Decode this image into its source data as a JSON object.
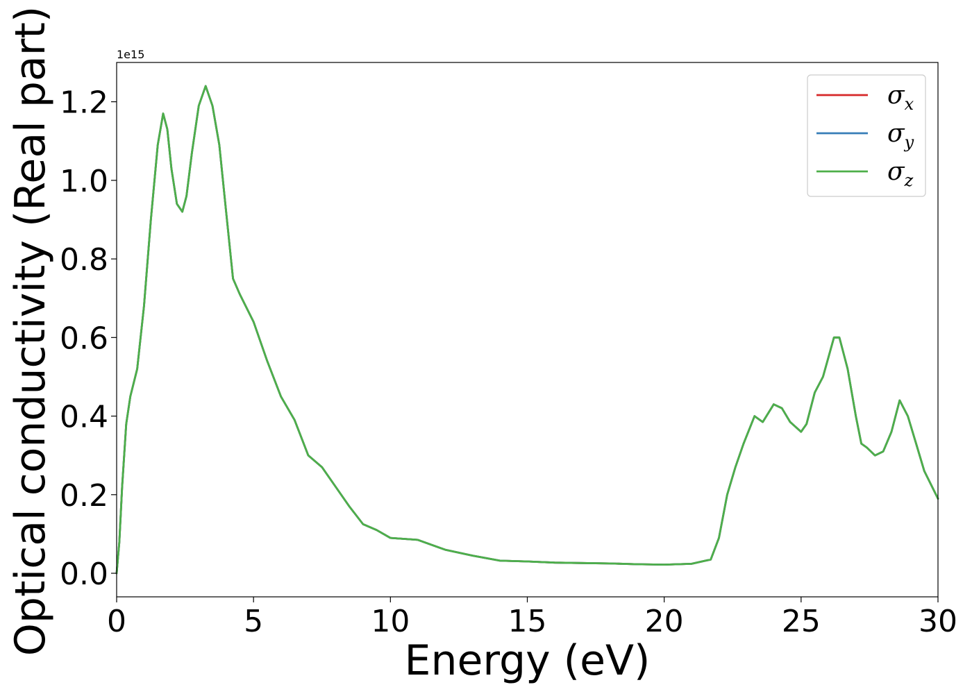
{
  "chart_data": {
    "type": "line",
    "xlabel": "Energy (eV)",
    "ylabel": "Optical conductivity (Real part)",
    "y_offset_text": "1e15",
    "xlim": [
      0,
      30
    ],
    "ylim": [
      -0.06,
      1.3
    ],
    "x_ticks": [
      0,
      5,
      10,
      15,
      20,
      25,
      30
    ],
    "x_tick_labels": [
      "0",
      "5",
      "10",
      "15",
      "20",
      "25",
      "30"
    ],
    "y_ticks": [
      0.0,
      0.2,
      0.4,
      0.6,
      0.8,
      1.0,
      1.2
    ],
    "y_tick_labels": [
      "0.0",
      "0.2",
      "0.4",
      "0.6",
      "0.8",
      "1.0",
      "1.2"
    ],
    "grid": false,
    "legend_position": "top-right",
    "x": [
      0,
      0.1,
      0.2,
      0.35,
      0.5,
      0.75,
      1.0,
      1.25,
      1.5,
      1.7,
      1.85,
      2.0,
      2.2,
      2.4,
      2.55,
      2.75,
      3.0,
      3.25,
      3.5,
      3.75,
      4.0,
      4.25,
      4.5,
      5.0,
      5.5,
      6.0,
      6.5,
      7.0,
      7.5,
      8.0,
      8.5,
      9.0,
      9.5,
      10.0,
      11.0,
      12.0,
      13.0,
      14.0,
      15.0,
      16.0,
      17.0,
      18.0,
      19.0,
      20.0,
      21.0,
      21.7,
      22.0,
      22.3,
      22.6,
      22.9,
      23.3,
      23.6,
      24.0,
      24.3,
      24.6,
      25.0,
      25.2,
      25.5,
      25.8,
      26.0,
      26.2,
      26.4,
      26.7,
      27.0,
      27.2,
      27.4,
      27.7,
      28.0,
      28.3,
      28.6,
      28.9,
      29.2,
      29.5,
      30.0
    ],
    "series": [
      {
        "name": "σx",
        "color": "#d62728",
        "values": [
          0.0,
          0.08,
          0.22,
          0.38,
          0.45,
          0.52,
          0.68,
          0.9,
          1.09,
          1.17,
          1.13,
          1.03,
          0.94,
          0.92,
          0.96,
          1.07,
          1.19,
          1.24,
          1.19,
          1.09,
          0.92,
          0.75,
          0.71,
          0.64,
          0.54,
          0.45,
          0.39,
          0.3,
          0.27,
          0.22,
          0.17,
          0.125,
          0.11,
          0.09,
          0.085,
          0.06,
          0.045,
          0.032,
          0.03,
          0.027,
          0.026,
          0.025,
          0.023,
          0.022,
          0.024,
          0.035,
          0.09,
          0.2,
          0.27,
          0.33,
          0.4,
          0.385,
          0.43,
          0.42,
          0.385,
          0.36,
          0.38,
          0.46,
          0.5,
          0.55,
          0.6,
          0.6,
          0.52,
          0.4,
          0.33,
          0.32,
          0.3,
          0.31,
          0.36,
          0.44,
          0.4,
          0.33,
          0.26,
          0.19
        ]
      },
      {
        "name": "σy",
        "color": "#377eb8",
        "values": [
          0.0,
          0.08,
          0.22,
          0.38,
          0.45,
          0.52,
          0.68,
          0.9,
          1.09,
          1.17,
          1.13,
          1.03,
          0.94,
          0.92,
          0.96,
          1.07,
          1.19,
          1.24,
          1.19,
          1.09,
          0.92,
          0.75,
          0.71,
          0.64,
          0.54,
          0.45,
          0.39,
          0.3,
          0.27,
          0.22,
          0.17,
          0.125,
          0.11,
          0.09,
          0.085,
          0.06,
          0.045,
          0.032,
          0.03,
          0.027,
          0.026,
          0.025,
          0.023,
          0.022,
          0.024,
          0.035,
          0.09,
          0.2,
          0.27,
          0.33,
          0.4,
          0.385,
          0.43,
          0.42,
          0.385,
          0.36,
          0.38,
          0.46,
          0.5,
          0.55,
          0.6,
          0.6,
          0.52,
          0.4,
          0.33,
          0.32,
          0.3,
          0.31,
          0.36,
          0.44,
          0.4,
          0.33,
          0.26,
          0.19
        ]
      },
      {
        "name": "σz",
        "color": "#4daf4a",
        "values": [
          0.0,
          0.08,
          0.22,
          0.38,
          0.45,
          0.52,
          0.68,
          0.9,
          1.09,
          1.17,
          1.13,
          1.03,
          0.94,
          0.92,
          0.96,
          1.07,
          1.19,
          1.24,
          1.19,
          1.09,
          0.92,
          0.75,
          0.71,
          0.64,
          0.54,
          0.45,
          0.39,
          0.3,
          0.27,
          0.22,
          0.17,
          0.125,
          0.11,
          0.09,
          0.085,
          0.06,
          0.045,
          0.032,
          0.03,
          0.027,
          0.026,
          0.025,
          0.023,
          0.022,
          0.024,
          0.035,
          0.09,
          0.2,
          0.27,
          0.33,
          0.4,
          0.385,
          0.43,
          0.42,
          0.385,
          0.36,
          0.38,
          0.46,
          0.5,
          0.55,
          0.6,
          0.6,
          0.52,
          0.4,
          0.33,
          0.32,
          0.3,
          0.31,
          0.36,
          0.44,
          0.4,
          0.33,
          0.26,
          0.19
        ]
      }
    ],
    "legend": [
      {
        "symbol": "σ",
        "subscript": "x",
        "color": "#d62728"
      },
      {
        "symbol": "σ",
        "subscript": "y",
        "color": "#377eb8"
      },
      {
        "symbol": "σ",
        "subscript": "z",
        "color": "#4daf4a"
      }
    ]
  }
}
